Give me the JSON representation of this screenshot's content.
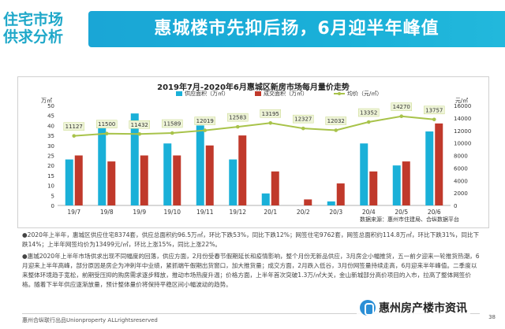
{
  "side_title": "住宅市场\n供求分析",
  "banner_title": "惠城楼市先抑后扬，6月迎半年峰值",
  "chart_data": {
    "type": "bar+line",
    "title": "2019年7月-2020年6月惠城区新房市场每月量价走势",
    "categories": [
      "19/7",
      "19/8",
      "19/9",
      "19/10",
      "19/11",
      "19/12",
      "20/1",
      "20/2",
      "20/3",
      "20/4",
      "20/5",
      "20/6"
    ],
    "series": [
      {
        "name": "供应面积（万㎡）",
        "type": "bar",
        "color": "#1ab0d8",
        "values": [
          23,
          40,
          46,
          31,
          40,
          23,
          6,
          0,
          2,
          31,
          20,
          37
        ]
      },
      {
        "name": "成交面积（万㎡）",
        "type": "bar",
        "color": "#c0392b",
        "values": [
          25,
          22,
          25,
          25,
          30,
          35,
          17,
          3,
          11,
          17,
          22,
          41
        ]
      },
      {
        "name": "均价（元/㎡）",
        "type": "line",
        "color": "#a8c34a",
        "values": [
          11127,
          11500,
          11432,
          11589,
          12019,
          12583,
          13195,
          12327,
          12032,
          13352,
          14270,
          13757
        ],
        "labels": [
          "11127",
          "11500",
          "11432",
          "11589",
          "12019",
          "12583",
          "13195",
          "12327",
          "12032",
          "13352",
          "14270",
          "13757"
        ]
      }
    ],
    "y_left": {
      "label": "万㎡",
      "ticks": [
        "0",
        "5",
        "10",
        "15",
        "20",
        "25",
        "30",
        "35",
        "40",
        "45",
        "50"
      ],
      "min": 0,
      "max": 50
    },
    "y_right": {
      "label": "元/㎡",
      "ticks": [
        "0",
        "2000",
        "4000",
        "6000",
        "8000",
        "10000",
        "12000",
        "14000",
        "16000"
      ],
      "min": 0,
      "max": 16000
    },
    "legend": [
      "供应面积（万㎡）",
      "成交面积（万㎡）",
      "均价（元/㎡）"
    ]
  },
  "source": "数据来源：惠州市住建局、合纵数据平台",
  "para1": "●2020年上半年，惠城区供应住宅8374套，供应总面积约96.5万㎡，环比下跌53%，同比下跌12%；网签住宅9762套，网签总面积约114.8万㎡，环比下跌31%，同比下跌14%；上半年网签均价为13499元/㎡，环比上涨15%，同比上涨22%。",
  "para2": "●惠城2020年上半年市场供求出现不同幅度的回落，供应方面，2月份受春节假期延长和疫情影响，整个月份无新品供应，3月房企小幅推货，五一前夕迎来一轮推货热潮，6月迎来上半年高峰，部分原因是房企为冲刺年中业绩，紧抓端午假期出货窗口，加大推货量；成交方面，2月跌入低谷，3月份网签量持续走高，6月迎来半年峰值。二季度以来整体环境趋于宽松，前期受压抑的购房需求逐步释放，推动市场热度升温；价格方面，上半年首次突破1.3万/㎡大关，金山新城部分高价项目的入市，拉高了整体网签价格。随着下半年供应逐渐放量，预计整体量价将保持平稳区间小幅波动的趋势。",
  "footer_left": "惠州合纵联行出品Unionproperty ALLrightsreserved",
  "footer_page": "38",
  "watermark": "惠州房产楼市资讯"
}
